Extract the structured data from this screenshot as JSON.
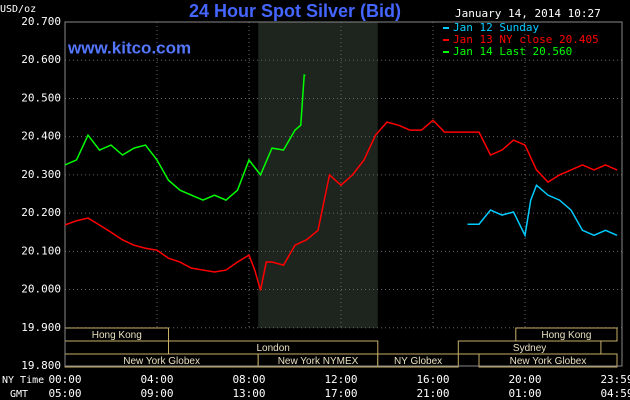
{
  "chart_data": {
    "type": "line",
    "title": "24 Hour Spot Silver (Bid)",
    "timestamp": "January 14, 2014 10:27",
    "watermark": "www.kitco.com",
    "y_label": "USD/oz",
    "x_label": "NY Time",
    "x2_label": "GMT",
    "xlim": [
      0,
      24
    ],
    "xticks": [
      {
        "value": 0,
        "label": "00:00"
      },
      {
        "value": 4,
        "label": "04:00"
      },
      {
        "value": 8,
        "label": "08:00"
      },
      {
        "value": 12,
        "label": "12:00"
      },
      {
        "value": 16,
        "label": "16:00"
      },
      {
        "value": 20,
        "label": "20:00"
      },
      {
        "value": 24,
        "label": "23:59"
      }
    ],
    "x2ticks": [
      {
        "value": 0,
        "label": "05:00"
      },
      {
        "value": 4,
        "label": "09:00"
      },
      {
        "value": 8,
        "label": "13:00"
      },
      {
        "value": 12,
        "label": "17:00"
      },
      {
        "value": 16,
        "label": "21:00"
      },
      {
        "value": 20,
        "label": "01:00"
      },
      {
        "value": 24,
        "label": "04:59"
      }
    ],
    "ylim": [
      19.8,
      20.7
    ],
    "yticks": [
      {
        "value": 19.8,
        "label": "19.800"
      },
      {
        "value": 19.9,
        "label": "19.900"
      },
      {
        "value": 20.0,
        "label": "20.000"
      },
      {
        "value": 20.1,
        "label": "20.100"
      },
      {
        "value": 20.2,
        "label": "20.200"
      },
      {
        "value": 20.3,
        "label": "20.300"
      },
      {
        "value": 20.4,
        "label": "20.400"
      },
      {
        "value": 20.5,
        "label": "20.500"
      },
      {
        "value": 20.6,
        "label": "20.600"
      },
      {
        "value": 20.7,
        "label": "20.700"
      }
    ],
    "grid": true,
    "legend": "top-right",
    "shaded_hours": [
      8.4,
      13.6
    ],
    "sessions": [
      [
        {
          "label": "Hong Kong",
          "start": 0,
          "end": 4.5
        },
        {
          "label": "Hong Kong",
          "start": 19.6,
          "end": 24
        }
      ],
      [
        {
          "label": "London",
          "start": 4.5,
          "end": 13.6
        },
        {
          "label": "Sydney",
          "start": 17.1,
          "end": 23.3
        }
      ],
      [
        {
          "label": "New York Globex",
          "start": 0,
          "end": 8.4
        },
        {
          "label": "New York NYMEX",
          "start": 8.4,
          "end": 13.6
        },
        {
          "label": "NY Globex",
          "start": 13.6,
          "end": 17.1
        },
        {
          "label": "New York Globex",
          "start": 18.0,
          "end": 24
        }
      ]
    ],
    "series": [
      {
        "name": "Jan 12 Sunday",
        "color": "#00ccff",
        "x": [
          17.5,
          18,
          18.5,
          19,
          19.5,
          20,
          20.25,
          20.5,
          21,
          21.5,
          22,
          22.5,
          23,
          23.5,
          24
        ],
        "values": [
          20.171,
          20.171,
          20.208,
          20.195,
          20.203,
          20.142,
          20.234,
          20.273,
          20.247,
          20.234,
          20.208,
          20.155,
          20.142,
          20.155,
          20.142
        ]
      },
      {
        "name": "Jan 13 NY close 20.405",
        "color": "#ff0000",
        "x": [
          0,
          0.5,
          1,
          1.5,
          2,
          2.5,
          3,
          3.5,
          4,
          4.5,
          5,
          5.5,
          6,
          6.5,
          7,
          7.5,
          8,
          8.25,
          8.5,
          8.75,
          9,
          9.5,
          10,
          10.5,
          11,
          11.5,
          12,
          12.5,
          13,
          13.5,
          14,
          14.5,
          15,
          15.5,
          16,
          16.5,
          17,
          17.5,
          18,
          18.5,
          19,
          19.5,
          20,
          20.5,
          21,
          21.5,
          22,
          22.5,
          23,
          23.5,
          24
        ],
        "values": [
          20.169,
          20.18,
          20.187,
          20.169,
          20.15,
          20.13,
          20.116,
          20.108,
          20.103,
          20.082,
          20.072,
          20.056,
          20.051,
          20.046,
          20.051,
          20.072,
          20.09,
          20.051,
          19.998,
          20.072,
          20.072,
          20.064,
          20.116,
          20.13,
          20.155,
          20.3,
          20.273,
          20.3,
          20.339,
          20.404,
          20.438,
          20.43,
          20.417,
          20.417,
          20.443,
          20.412,
          20.412,
          20.412,
          20.412,
          20.352,
          20.365,
          20.391,
          20.378,
          20.313,
          20.281,
          20.3,
          20.313,
          20.326,
          20.313,
          20.326,
          20.313
        ]
      },
      {
        "name": "Jan 14 Last 20.560",
        "color": "#00ff00",
        "x": [
          0,
          0.5,
          1,
          1.5,
          2,
          2.5,
          3,
          3.5,
          4,
          4.5,
          5,
          5.5,
          6,
          6.5,
          7,
          7.5,
          8,
          8.5,
          9,
          9.5,
          10,
          10.25,
          10.4,
          10.45
        ],
        "values": [
          20.326,
          20.339,
          20.404,
          20.365,
          20.378,
          20.352,
          20.37,
          20.378,
          20.339,
          20.286,
          20.26,
          20.247,
          20.234,
          20.247,
          20.234,
          20.26,
          20.339,
          20.3,
          20.37,
          20.365,
          20.417,
          20.43,
          20.561,
          20.56
        ]
      }
    ]
  }
}
